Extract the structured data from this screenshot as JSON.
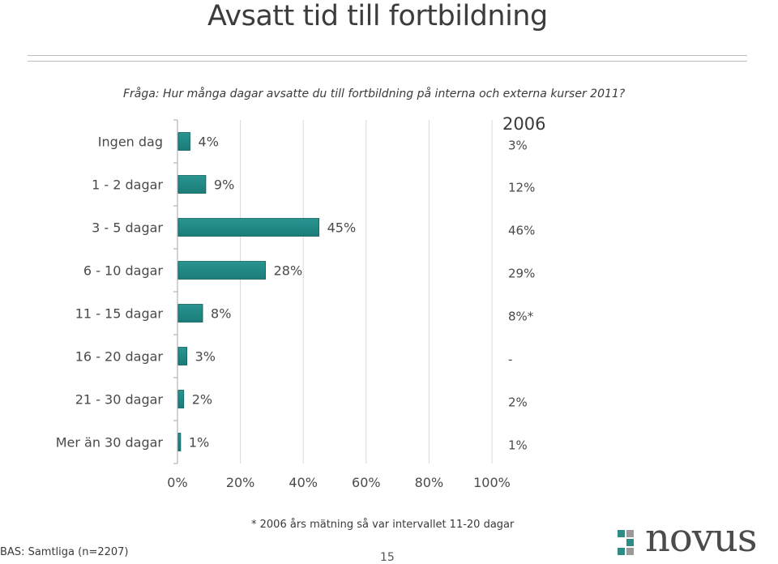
{
  "header": {
    "title": "Avsatt tid till fortbildning",
    "question": "Fråga: Hur många dagar avsatte du till fortbildning på interna och externa kurser 2011?"
  },
  "comparison": {
    "heading": "2006",
    "values": [
      "3%",
      "12%",
      "46%",
      "29%",
      "8%*",
      "-",
      "2%",
      "1%"
    ]
  },
  "colors": {
    "bar": "#1a7c78",
    "bar_light": "#2a9591",
    "grid": "#d9d9d9",
    "axis": "#a6a6a6",
    "logo_square_teal": "#2e8b86",
    "logo_square_gray": "#9a9a9a"
  },
  "chart_data": {
    "type": "bar",
    "orientation": "horizontal",
    "categories": [
      "Ingen dag",
      "1 - 2 dagar",
      "3 - 5 dagar",
      "6 - 10 dagar",
      "11 - 15 dagar",
      "16 - 20 dagar",
      "21 - 30 dagar",
      "Mer än 30 dagar"
    ],
    "values": [
      4,
      9,
      45,
      28,
      8,
      3,
      2,
      1
    ],
    "value_labels": [
      "4%",
      "9%",
      "45%",
      "28%",
      "8%",
      "3%",
      "2%",
      "1%"
    ],
    "xlim": [
      0,
      100
    ],
    "x_ticks": [
      "0%",
      "20%",
      "40%",
      "60%",
      "80%",
      "100%"
    ],
    "x_tick_values": [
      0,
      20,
      40,
      60,
      80,
      100
    ],
    "grid": true
  },
  "footer": {
    "footnote": "* 2006 års mätning så var intervallet 11-20 dagar",
    "base": "BAS: Samtliga (n=2207)",
    "page_number": "15",
    "logo_text": "novus"
  }
}
